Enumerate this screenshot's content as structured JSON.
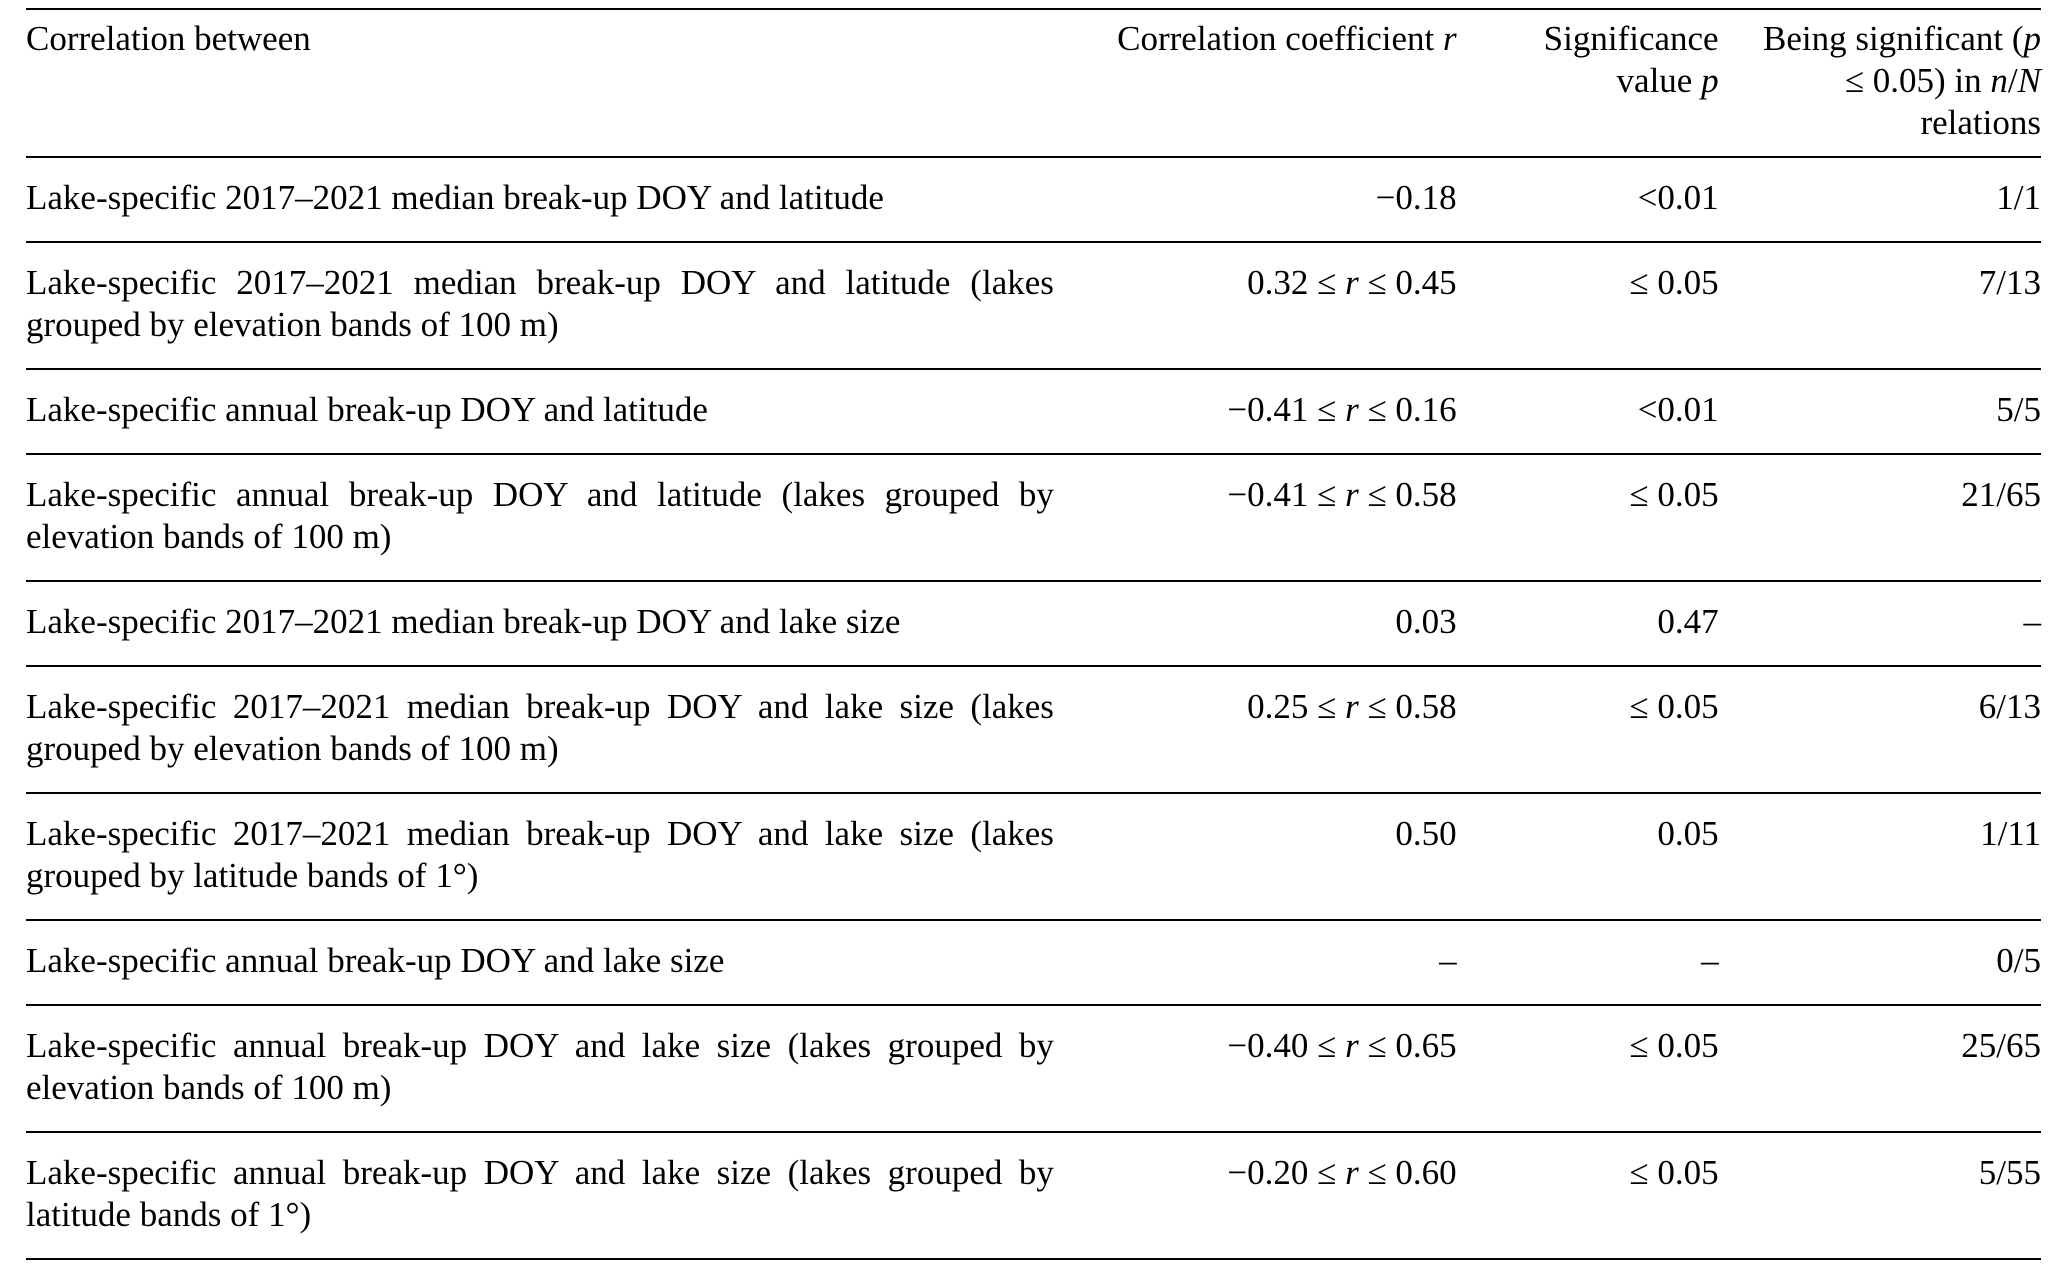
{
  "page": {
    "background": "#ffffff",
    "text_color": "#000000",
    "rule_color": "#000000"
  },
  "table": {
    "columns": [
      {
        "label": "Correlation between",
        "align": "left"
      },
      {
        "label": "Correlation coefficient r",
        "align": "right"
      },
      {
        "label": "Significance value p",
        "align": "right"
      },
      {
        "label": "Being significant (p ≤ 0.05) in n/N relations",
        "align": "right"
      }
    ],
    "rows": [
      [
        "Lake-specific 2017–2021 median break-up DOY and latitude",
        "−0.18",
        "<0.01",
        "1/1"
      ],
      [
        "Lake-specific 2017–2021 median break-up DOY and latitude (lakes grouped by elevation bands of 100 m)",
        "0.32 ≤ r ≤ 0.45",
        "≤ 0.05",
        "7/13"
      ],
      [
        "Lake-specific annual break-up DOY and latitude",
        "−0.41 ≤ r ≤ 0.16",
        "<0.01",
        "5/5"
      ],
      [
        "Lake-specific annual break-up DOY and latitude (lakes grouped by elevation bands of 100 m)",
        "−0.41 ≤ r ≤ 0.58",
        "≤ 0.05",
        "21/65"
      ],
      [
        "Lake-specific 2017–2021 median break-up DOY and lake size",
        "0.03",
        "0.47",
        "–"
      ],
      [
        "Lake-specific 2017–2021 median break-up DOY and lake size (lakes grouped by elevation bands of 100 m)",
        "0.25 ≤ r ≤ 0.58",
        "≤ 0.05",
        "6/13"
      ],
      [
        "Lake-specific 2017–2021 median break-up DOY and lake size (lakes grouped by latitude bands of 1°)",
        "0.50",
        "0.05",
        "1/11"
      ],
      [
        "Lake-specific annual break-up DOY and lake size",
        "–",
        "–",
        "0/5"
      ],
      [
        "Lake-specific annual break-up DOY and lake size (lakes grouped by elevation bands of 100 m)",
        "−0.40 ≤ r ≤ 0.65",
        "≤ 0.05",
        "25/65"
      ],
      [
        "Lake-specific annual break-up DOY and lake size (lakes grouped by latitude bands of 1°)",
        "−0.20 ≤ r ≤ 0.60",
        "≤ 0.05",
        "5/55"
      ]
    ]
  }
}
